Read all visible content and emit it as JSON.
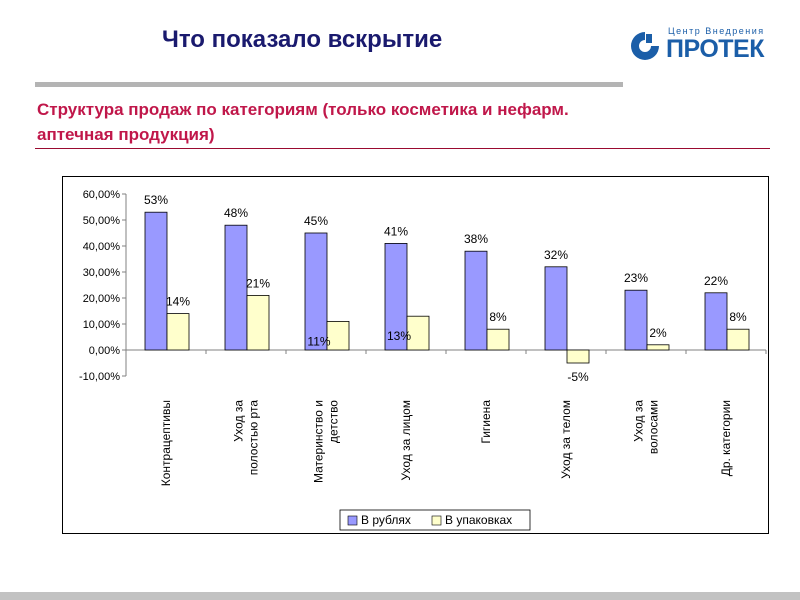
{
  "page": {
    "title": "Что показало вскрытие"
  },
  "logo": {
    "tagline": "Центр Внедрения",
    "name": "ПРОТЕК"
  },
  "subtitle": "Структура продаж по категориям (только косметика и нефарм. аптечная продукция)",
  "colors": {
    "series1": "#9999ff",
    "series2": "#ffffcc",
    "title": "#1a1a6e",
    "subtitle": "#c0174a",
    "logo": "#1b5ea8"
  },
  "chart_data": {
    "type": "bar",
    "categories": [
      [
        "Контрацептивы"
      ],
      [
        "Уход за",
        "полостью рта"
      ],
      [
        "Материнство и",
        "детство"
      ],
      [
        "Уход за лицом"
      ],
      [
        "Гигиена"
      ],
      [
        "Уход за телом"
      ],
      [
        "Уход за",
        "волосами"
      ],
      [
        "Др. категории"
      ]
    ],
    "series": [
      {
        "name": "В рублях",
        "values": [
          53,
          48,
          45,
          41,
          38,
          32,
          23,
          22
        ],
        "labels": [
          "53%",
          "48%",
          "45%",
          "41%",
          "38%",
          "32%",
          "23%",
          "22%"
        ]
      },
      {
        "name": "В упаковках",
        "values": [
          14,
          21,
          11,
          13,
          8,
          -5,
          2,
          8
        ],
        "labels": [
          "14%",
          "21%",
          "11%",
          "13%",
          "8%",
          "-5%",
          "2%",
          "8%"
        ]
      }
    ],
    "yticks": [
      "60,00%",
      "50,00%",
      "40,00%",
      "30,00%",
      "20,00%",
      "10,00%",
      "0,00%",
      "-10,00%"
    ],
    "ylim": [
      -10,
      60
    ],
    "grid": false,
    "legend": "bottom"
  }
}
